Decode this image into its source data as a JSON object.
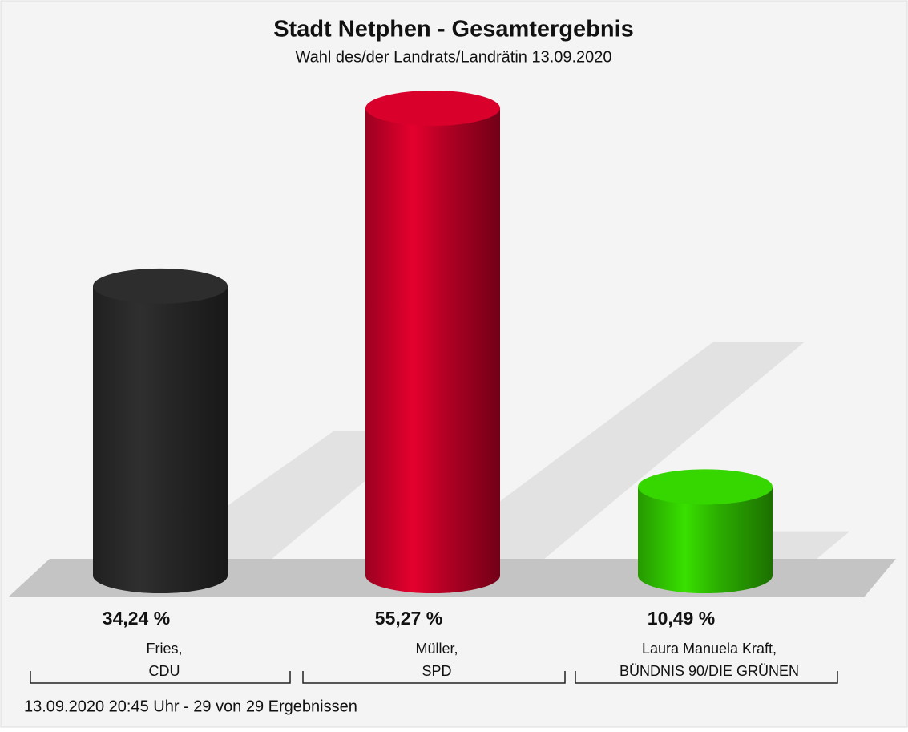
{
  "chart_data": {
    "type": "cylinder",
    "title": "Stadt Netphen - Gesamtergebnis",
    "subtitle": "Wahl des/der Landrats/Landrätin 13.09.2020",
    "categories": [
      "Fries,\nCDU",
      "Müller,\nSPD",
      "Laura Manuela Kraft,\nBÜNDNIS 90/DIE GRÜNEN"
    ],
    "values": [
      34.24,
      55.27,
      10.49
    ],
    "value_labels": [
      "34,24 %",
      "55,27 %",
      "10,49 %"
    ],
    "colors": [
      "#2b2b2b",
      "#d0002a",
      "#33cc00"
    ],
    "footer": "13.09.2020 20:45 Uhr - 29 von 29 Ergebnissen"
  }
}
